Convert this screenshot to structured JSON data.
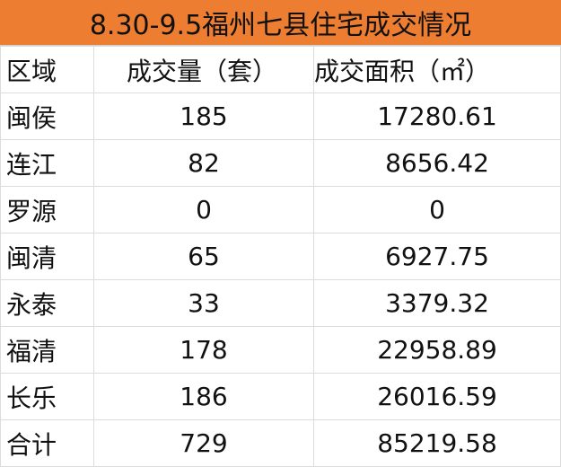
{
  "title": "8.30-9.5福州七县住宅成交情况",
  "header_color": "#ED7D31",
  "columns": [
    "区域",
    "成交量（套）",
    "成交面积（㎡）"
  ],
  "rows": [
    [
      "闽侯",
      "185",
      "17280.61"
    ],
    [
      "连江",
      "82",
      "8656.42"
    ],
    [
      "罗源",
      "0",
      "0"
    ],
    [
      "闽清",
      "65",
      "6927.75"
    ],
    [
      "永泰",
      "33",
      "3379.32"
    ],
    [
      "福清",
      "178",
      "22958.89"
    ],
    [
      "长乐",
      "186",
      "26016.59"
    ],
    [
      "合计",
      "729",
      "85219.58"
    ]
  ]
}
